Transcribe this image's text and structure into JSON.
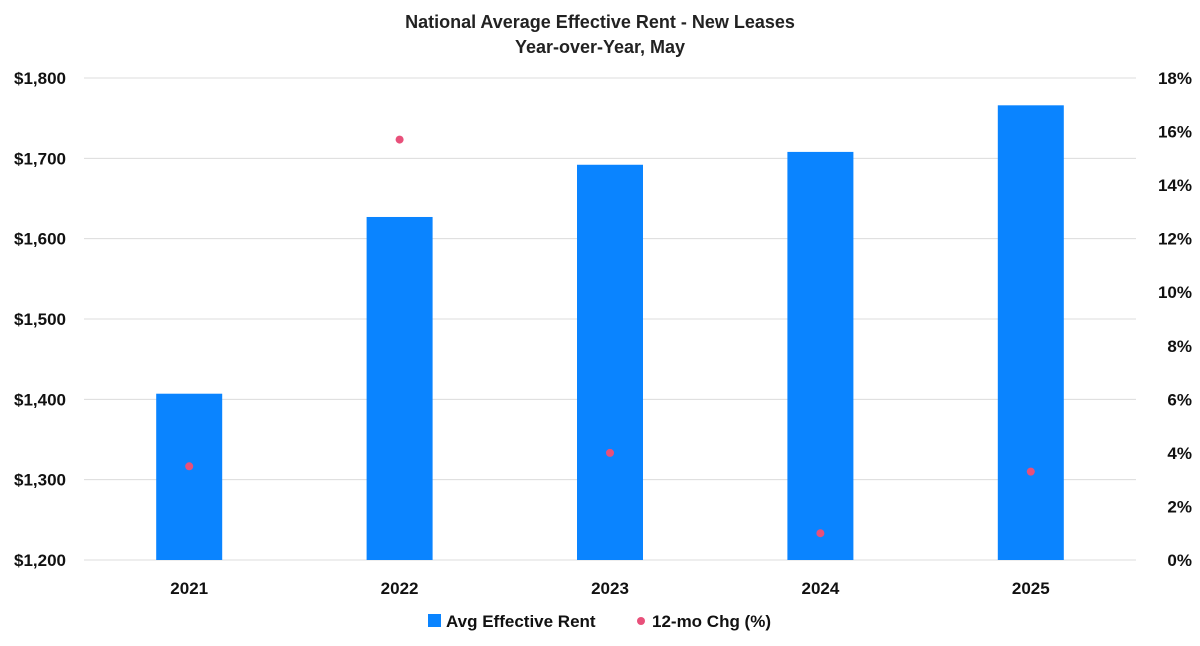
{
  "chart_data": {
    "type": "bar",
    "title": "National Average Effective Rent - New Leases",
    "subtitle": "Year-over-Year, May",
    "categories": [
      "2021",
      "2022",
      "2023",
      "2024",
      "2025"
    ],
    "series": [
      {
        "name": "Avg Effective Rent",
        "type": "bar",
        "axis": "left",
        "color": "#0A84FF",
        "values": [
          1407,
          1627,
          1692,
          1708,
          1766
        ]
      },
      {
        "name": "12-mo Chg (%)",
        "type": "scatter",
        "axis": "right",
        "color": "#E8507A",
        "values": [
          3.5,
          15.7,
          4.0,
          1.0,
          3.3
        ]
      }
    ],
    "y_left": {
      "min": 1200,
      "max": 1800,
      "ticks": [
        1200,
        1300,
        1400,
        1500,
        1600,
        1700,
        1800
      ],
      "tick_labels": [
        "$1,200",
        "$1,300",
        "$1,400",
        "$1,500",
        "$1,600",
        "$1,700",
        "$1,800"
      ]
    },
    "y_right": {
      "min": 0,
      "max": 18,
      "ticks": [
        0,
        2,
        4,
        6,
        8,
        10,
        12,
        14,
        16,
        18
      ],
      "tick_labels": [
        "0%",
        "2%",
        "4%",
        "6%",
        "8%",
        "10%",
        "12%",
        "14%",
        "16%",
        "18%"
      ]
    },
    "grid": true,
    "legend_position": "bottom"
  }
}
